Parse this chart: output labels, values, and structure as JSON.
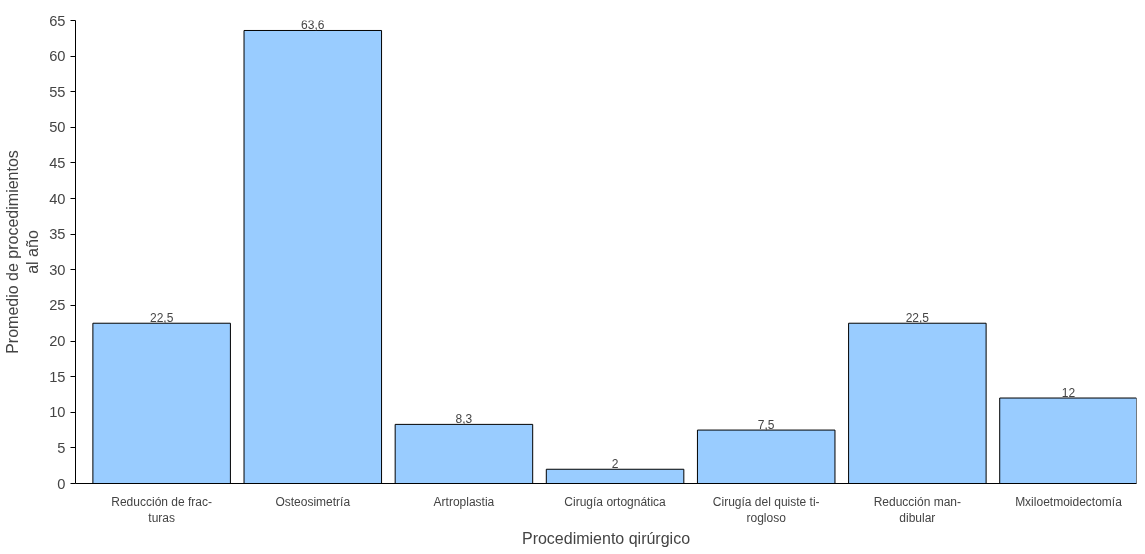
{
  "chart_data": {
    "type": "bar",
    "xlabel": "Procedimiento qirúrgico",
    "ylabel": "Promedio de procedimientos\nal año",
    "categories": [
      "Reducción de frac-\nturas",
      "Osteosimetría",
      "Artroplastia",
      "Cirugía ortognática",
      "Cirugía del quiste ti-\nrogloso",
      "Reducción man-\ndibular",
      "Mxiloetmoidectomía"
    ],
    "values": [
      22.5,
      63.6,
      8.3,
      2,
      7.5,
      22.5,
      12
    ],
    "value_labels": [
      "22,5",
      "63,6",
      "8,3",
      "2",
      "7,5",
      "22,5",
      "12"
    ],
    "color": "#99ccff",
    "ylim": [
      0,
      65
    ],
    "yticks": [
      0,
      5,
      10,
      15,
      20,
      25,
      30,
      35,
      40,
      45,
      50,
      55,
      60,
      65
    ],
    "grid": false
  }
}
